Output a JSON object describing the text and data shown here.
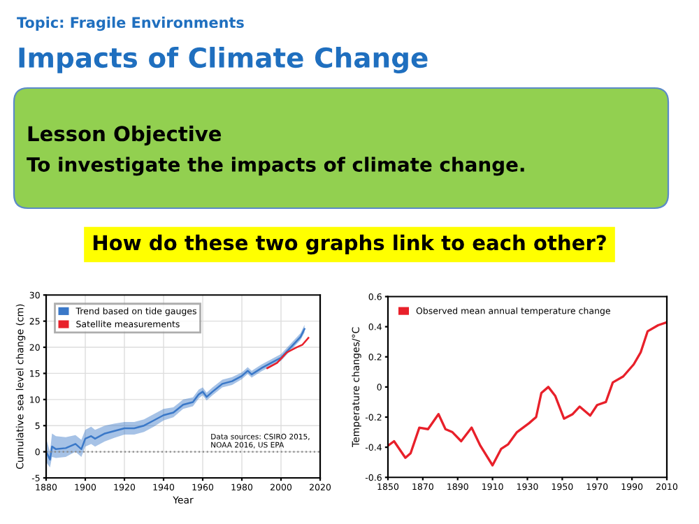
{
  "chart_data": [
    {
      "type": "other",
      "subtitle": "Topic: Fragile Environments",
      "title": "Impacts of Climate Change",
      "annotations": [
        "Lesson Objective",
        "To investigate the impacts of climate change.",
        "How do these two graphs link to each other?"
      ]
    },
    {
      "type": "line",
      "xlabel": "Year",
      "ylabel": "Cumulative sea level change (cm)",
      "xlim": [
        1880,
        2020
      ],
      "xticks": [
        1880,
        1900,
        1920,
        1940,
        1960,
        1980,
        2000,
        2020
      ],
      "ylim": [
        -5,
        30
      ],
      "yticks": [
        -5,
        0,
        5,
        10,
        15,
        20,
        25,
        30
      ],
      "grid": true,
      "legend": "top left",
      "annotations": [
        "Data sources: CSIRO 2015,\nNOAA 2016, US EPA"
      ],
      "ref_lines": [
        {
          "axis": "y",
          "value": 0,
          "color": "#888888",
          "line_style": "dotted"
        }
      ],
      "series": [
        {
          "name": "Trend based on tide gauges",
          "color": "#3a78c8",
          "x": [
            1880,
            1882,
            1883,
            1885,
            1890,
            1895,
            1898,
            1900,
            1903,
            1905,
            1910,
            1915,
            1920,
            1925,
            1930,
            1935,
            1940,
            1945,
            1950,
            1955,
            1958,
            1960,
            1962,
            1965,
            1970,
            1975,
            1980,
            1983,
            1985,
            1990,
            1995,
            2000,
            2005,
            2010,
            2012
          ],
          "values": [
            0,
            -1.5,
            1,
            0.5,
            0.7,
            1.5,
            0.5,
            2.5,
            3,
            2.5,
            3.5,
            4,
            4.5,
            4.5,
            5,
            6,
            7,
            7.5,
            9,
            9.5,
            11,
            11.5,
            10.5,
            11.5,
            13,
            13.5,
            14.5,
            15.5,
            14.8,
            16,
            17,
            18,
            20,
            22,
            23.5
          ],
          "lower": [
            -2,
            -3,
            -1,
            -1.2,
            -1,
            0,
            -1,
            1,
            1.5,
            1,
            2,
            2.7,
            3.3,
            3.3,
            3.8,
            4.8,
            6,
            6.6,
            8.2,
            8.7,
            10.2,
            10.8,
            9.8,
            10.8,
            12.3,
            12.8,
            13.9,
            14.9,
            14.2,
            15.4,
            16.4,
            17.4,
            19.4,
            21.4,
            22.8
          ],
          "upper": [
            2.5,
            0,
            3.5,
            3,
            2.8,
            3.2,
            2.3,
            4.2,
            4.8,
            4.2,
            5,
            5.4,
            5.7,
            5.7,
            6.2,
            7.2,
            8.2,
            8.5,
            10,
            10.4,
            11.9,
            12.3,
            11.3,
            12.3,
            13.8,
            14.3,
            15.2,
            16.2,
            15.5,
            16.7,
            17.7,
            18.7,
            20.7,
            22.7,
            24.3
          ]
        },
        {
          "name": "Satellite measurements",
          "color": "#e8202a",
          "x": [
            1993,
            1998,
            2003,
            2008,
            2011,
            2014
          ],
          "values": [
            16,
            17,
            19,
            20,
            20.5,
            21.8
          ]
        }
      ]
    },
    {
      "type": "line",
      "ylabel": "Temperature changes/°C",
      "xlim": [
        1850,
        2010
      ],
      "xticks": [
        1850,
        1870,
        1890,
        1910,
        1930,
        1950,
        1970,
        1990,
        2010
      ],
      "ylim": [
        -0.6,
        0.6
      ],
      "yticks": [
        -0.6,
        -0.4,
        -0.2,
        0,
        0.2,
        0.4,
        0.6
      ],
      "grid": false,
      "legend": "top left",
      "series": [
        {
          "name": "Observed mean annual temperature change",
          "color": "#e8202a",
          "x": [
            1850,
            1853.5,
            1860,
            1863,
            1868,
            1873,
            1879,
            1883,
            1887,
            1892,
            1898,
            1903,
            1910,
            1915,
            1919,
            1924,
            1931,
            1935,
            1938,
            1942,
            1946,
            1951,
            1956,
            1960,
            1966,
            1970,
            1975,
            1979,
            1985,
            1991,
            1995,
            1999,
            2005,
            2010
          ],
          "values": [
            -0.39,
            -0.36,
            -0.47,
            -0.44,
            -0.27,
            -0.28,
            -0.18,
            -0.28,
            -0.3,
            -0.36,
            -0.27,
            -0.39,
            -0.52,
            -0.41,
            -0.38,
            -0.3,
            -0.24,
            -0.2,
            -0.04,
            0.0,
            -0.06,
            -0.21,
            -0.18,
            -0.13,
            -0.19,
            -0.12,
            -0.1,
            0.03,
            0.07,
            0.15,
            0.23,
            0.37,
            0.41,
            0.43
          ]
        }
      ]
    }
  ]
}
